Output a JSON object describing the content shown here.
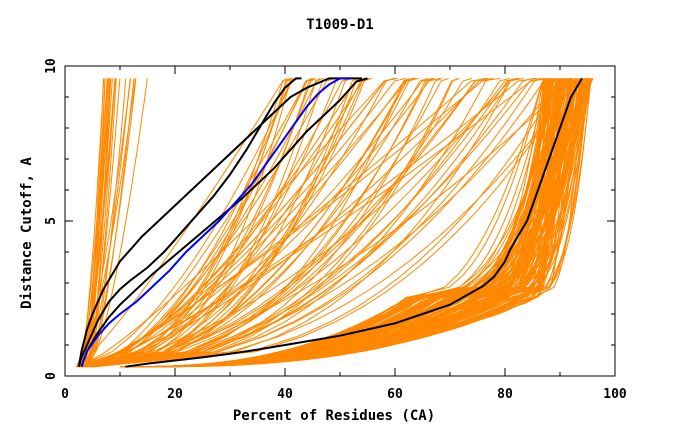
{
  "chart_data": {
    "type": "line",
    "title": "T1009-D1",
    "xlabel": "Percent of Residues (CA)",
    "ylabel": "Distance Cutoff, A",
    "xlim": [
      0,
      100
    ],
    "ylim": [
      0,
      10
    ],
    "x_ticks": [
      0,
      20,
      40,
      60,
      80,
      100
    ],
    "y_ticks": [
      0,
      5,
      10
    ],
    "grid": false,
    "legend": "none",
    "colors": {
      "background": "#ffffff",
      "axes": "#000000",
      "bundle": "#ff8800",
      "highlight_black": "#000000",
      "highlight_blue": "#0000ff"
    },
    "series": [
      {
        "color": "#000000",
        "x": [
          11,
          15,
          20,
          25,
          30,
          35,
          40,
          45,
          50,
          55,
          60,
          65,
          70,
          73,
          76,
          78,
          80,
          81,
          82,
          83,
          84,
          85,
          86,
          87,
          88,
          89,
          90,
          91,
          92,
          93,
          94
        ],
        "y": [
          0.3,
          0.4,
          0.5,
          0.6,
          0.72,
          0.85,
          1.0,
          1.15,
          1.3,
          1.5,
          1.7,
          2.0,
          2.3,
          2.6,
          2.9,
          3.2,
          3.7,
          4.1,
          4.4,
          4.7,
          5.0,
          5.5,
          6.0,
          6.5,
          7.0,
          7.5,
          8.0,
          8.5,
          9.0,
          9.3,
          9.6
        ]
      },
      {
        "color": "#000000",
        "x": [
          2.5,
          3,
          4,
          5,
          6,
          7,
          8,
          9,
          10,
          12,
          14,
          17,
          20,
          23,
          26,
          29,
          32,
          35,
          38,
          41,
          44,
          48,
          51,
          54
        ],
        "y": [
          0.3,
          0.8,
          1.5,
          2.0,
          2.4,
          2.8,
          3.1,
          3.4,
          3.7,
          4.1,
          4.5,
          5.0,
          5.5,
          6.0,
          6.5,
          7.0,
          7.5,
          8.0,
          8.5,
          9.0,
          9.3,
          9.6,
          10,
          10
        ]
      },
      {
        "color": "#000000",
        "x": [
          2.5,
          3,
          4,
          5,
          6,
          8,
          10,
          12,
          15,
          18,
          21,
          24,
          27,
          30,
          33,
          36,
          38,
          40,
          42,
          43
        ],
        "y": [
          0.3,
          0.6,
          1.0,
          1.4,
          1.8,
          2.4,
          2.8,
          3.1,
          3.5,
          4.0,
          4.6,
          5.2,
          5.8,
          6.5,
          7.3,
          8.2,
          8.8,
          9.3,
          9.7,
          10
        ]
      },
      {
        "color": "#000000",
        "x": [
          3,
          4,
          6,
          8,
          10,
          13,
          16,
          20,
          24,
          28,
          32,
          35,
          38,
          41,
          44,
          47,
          50,
          53,
          55
        ],
        "y": [
          0.3,
          0.8,
          1.4,
          1.9,
          2.3,
          2.8,
          3.3,
          3.9,
          4.5,
          5.1,
          5.7,
          6.2,
          6.7,
          7.3,
          7.9,
          8.4,
          8.9,
          9.5,
          10
        ]
      },
      {
        "color": "#0000ff",
        "x": [
          3,
          4,
          6,
          8,
          10,
          13,
          16,
          19,
          22,
          25,
          28,
          31,
          34,
          36,
          38,
          40,
          42,
          44,
          46,
          48,
          50,
          52
        ],
        "y": [
          0.3,
          0.8,
          1.3,
          1.7,
          2.0,
          2.4,
          2.9,
          3.4,
          4.0,
          4.5,
          5.0,
          5.6,
          6.2,
          6.7,
          7.2,
          7.7,
          8.2,
          8.7,
          9.1,
          9.4,
          9.7,
          10
        ]
      }
    ]
  }
}
